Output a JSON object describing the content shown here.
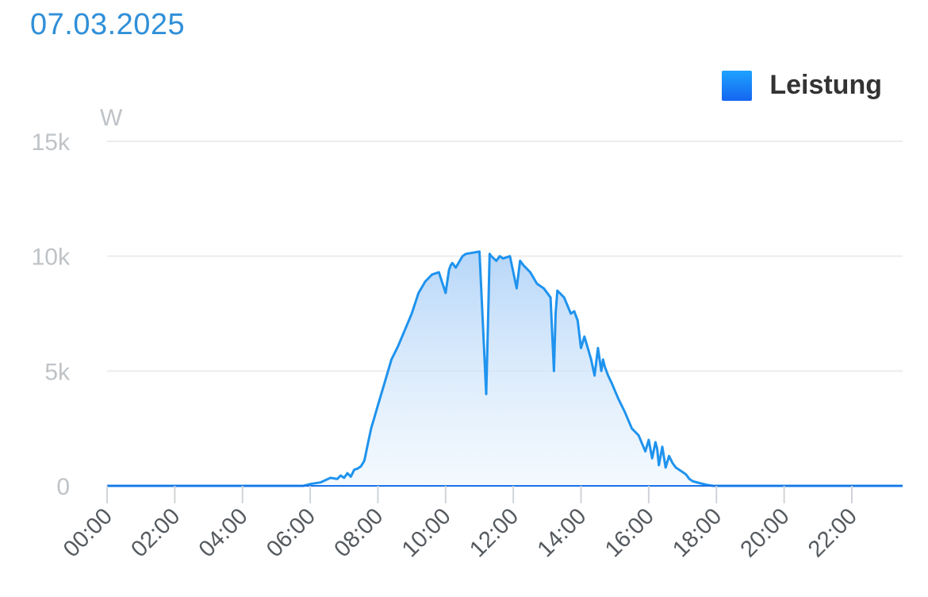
{
  "header": {
    "date": "07.03.2025"
  },
  "legend": {
    "label": "Leistung",
    "color": "#1e88f5"
  },
  "colors": {
    "line": "#1f93ee",
    "baseline": "#1a73e8",
    "grid": "#ececec"
  },
  "chart_data": {
    "type": "area",
    "title": "07.03.2025",
    "ylabel": "W",
    "ylim": [
      0,
      15000
    ],
    "yticks": [
      0,
      5000,
      10000,
      15000
    ],
    "ytick_labels": [
      "0",
      "5k",
      "10k",
      "15k"
    ],
    "xlim": [
      0,
      23.5
    ],
    "xticks": [
      0,
      2,
      4,
      6,
      8,
      10,
      12,
      14,
      16,
      18,
      20,
      22
    ],
    "xtick_labels": [
      "00:00",
      "02:00",
      "04:00",
      "06:00",
      "08:00",
      "10:00",
      "12:00",
      "14:00",
      "16:00",
      "18:00",
      "20:00",
      "22:00"
    ],
    "legend_position": "top-right",
    "grid": true,
    "series": [
      {
        "name": "Leistung",
        "x": [
          0,
          5.8,
          6.0,
          6.3,
          6.6,
          6.8,
          6.9,
          7.0,
          7.1,
          7.2,
          7.3,
          7.4,
          7.5,
          7.6,
          7.7,
          7.8,
          7.9,
          8.0,
          8.2,
          8.4,
          8.6,
          8.8,
          9.0,
          9.2,
          9.4,
          9.6,
          9.8,
          10.0,
          10.1,
          10.15,
          10.2,
          10.3,
          10.5,
          10.55,
          10.6,
          10.8,
          11.0,
          11.2,
          11.25,
          11.3,
          11.35,
          11.5,
          11.6,
          11.7,
          11.9,
          12.1,
          12.2,
          12.25,
          12.3,
          12.5,
          12.7,
          12.9,
          13.1,
          13.2,
          13.25,
          13.3,
          13.5,
          13.7,
          13.8,
          13.9,
          14.0,
          14.1,
          14.2,
          14.3,
          14.4,
          14.5,
          14.6,
          14.65,
          14.7,
          14.8,
          14.9,
          15.1,
          15.3,
          15.5,
          15.7,
          15.9,
          16.0,
          16.1,
          16.2,
          16.25,
          16.3,
          16.4,
          16.5,
          16.6,
          16.7,
          16.8,
          16.9,
          17.0,
          17.1,
          17.2,
          17.3,
          17.5,
          17.7,
          17.9,
          18.1,
          18.3,
          18.5,
          18.7,
          23.5
        ],
        "values": [
          0,
          0,
          80,
          150,
          350,
          300,
          450,
          350,
          550,
          400,
          700,
          750,
          850,
          1100,
          1800,
          2500,
          3000,
          3500,
          4500,
          5500,
          6100,
          6800,
          7500,
          8400,
          8900,
          9200,
          9300,
          8400,
          9400,
          9600,
          9700,
          9500,
          10000,
          10050,
          10100,
          10150,
          10200,
          4000,
          7000,
          10100,
          10000,
          9800,
          10000,
          9900,
          10000,
          8600,
          9800,
          9700,
          9600,
          9300,
          8800,
          8600,
          8200,
          5000,
          7500,
          8500,
          8200,
          7500,
          7600,
          7200,
          6000,
          6500,
          6000,
          5500,
          4800,
          6000,
          5000,
          5500,
          5200,
          4800,
          4500,
          3800,
          3200,
          2500,
          2200,
          1500,
          2000,
          1200,
          1900,
          1600,
          900,
          1700,
          800,
          1300,
          1000,
          800,
          700,
          600,
          500,
          300,
          200,
          120,
          50,
          0,
          0,
          0,
          0,
          0,
          0
        ]
      }
    ]
  }
}
